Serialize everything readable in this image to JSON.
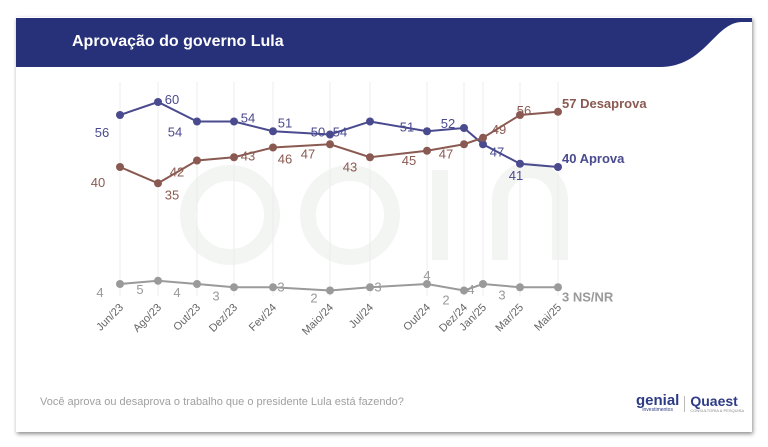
{
  "header": {
    "title": "Aprovação do governo Lula",
    "color": "#27317a"
  },
  "footer": {
    "question": "Você aprova ou desaprova o trabalho que o presidente Lula está fazendo?",
    "logo_genial": "genial",
    "logo_genial_sub": "investimentos",
    "logo_quaest": "Quaest",
    "logo_quaest_sub": "CONSULTORIA & PESQUISA"
  },
  "watermark": {
    "main": "genial",
    "sub": "investimentos"
  },
  "chart_data": {
    "type": "line",
    "categories": [
      "Jun/23",
      "Ago/23",
      "Out/23",
      "Dez/23",
      "Fev/24",
      "Maio/24",
      "Jul/24",
      "Out/24",
      "Dez/24",
      "Jan/25",
      "Mar/25",
      "Mai/25"
    ],
    "series": [
      {
        "name": "Aprova",
        "end_label": "40 Aprova",
        "color": "#4a4a8f",
        "values": [
          56,
          60,
          54,
          54,
          51,
          50,
          54,
          51,
          52,
          47,
          41,
          40
        ]
      },
      {
        "name": "Desaprova",
        "end_label": "57 Desaprova",
        "color": "#8a5a52",
        "values": [
          40,
          35,
          42,
          43,
          46,
          47,
          43,
          45,
          47,
          49,
          56,
          57
        ]
      },
      {
        "name": "NS/NR",
        "end_label": "3 NS/NR",
        "color": "#9a9a9a",
        "values": [
          4,
          5,
          4,
          3,
          3,
          2,
          3,
          4,
          2,
          4,
          3,
          3
        ]
      }
    ],
    "xlabel": "",
    "ylabel": "",
    "grid": "vertical"
  }
}
